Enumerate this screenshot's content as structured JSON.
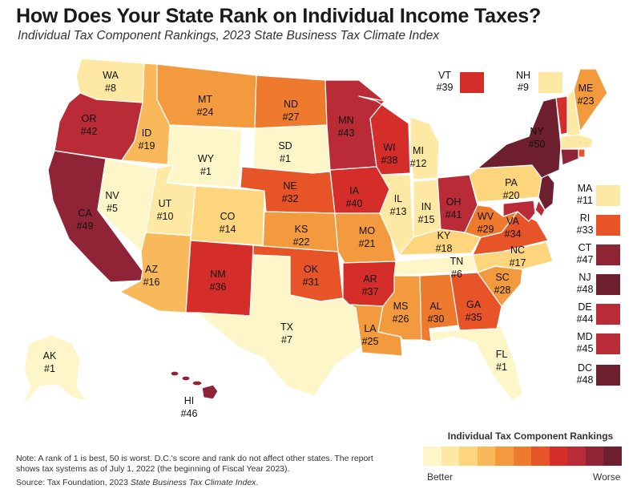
{
  "title": "How Does Your State Rank on Individual Income Taxes?",
  "subtitle": "Individual Tax Component Rankings, 2023 State Business Tax Climate Index",
  "colors": {
    "scale": [
      "#fdf6c8",
      "#fde9a3",
      "#fcd57c",
      "#f9b95b",
      "#f39a3e",
      "#ee7a2e",
      "#e65428",
      "#d52e2a",
      "#b92c37",
      "#8e2436",
      "#6d1e2f"
    ]
  },
  "states": {
    "WA": {
      "abbr": "WA",
      "rank": "#8"
    },
    "OR": {
      "abbr": "OR",
      "rank": "#42"
    },
    "CA": {
      "abbr": "CA",
      "rank": "#49"
    },
    "ID": {
      "abbr": "ID",
      "rank": "#19"
    },
    "NV": {
      "abbr": "NV",
      "rank": "#5"
    },
    "MT": {
      "abbr": "MT",
      "rank": "#24"
    },
    "WY": {
      "abbr": "WY",
      "rank": "#1"
    },
    "UT": {
      "abbr": "UT",
      "rank": "#10"
    },
    "AZ": {
      "abbr": "AZ",
      "rank": "#16"
    },
    "CO": {
      "abbr": "CO",
      "rank": "#14"
    },
    "NM": {
      "abbr": "NM",
      "rank": "#36"
    },
    "ND": {
      "abbr": "ND",
      "rank": "#27"
    },
    "SD": {
      "abbr": "SD",
      "rank": "#1"
    },
    "NE": {
      "abbr": "NE",
      "rank": "#32"
    },
    "KS": {
      "abbr": "KS",
      "rank": "#22"
    },
    "OK": {
      "abbr": "OK",
      "rank": "#31"
    },
    "TX": {
      "abbr": "TX",
      "rank": "#7"
    },
    "MN": {
      "abbr": "MN",
      "rank": "#43"
    },
    "IA": {
      "abbr": "IA",
      "rank": "#40"
    },
    "MO": {
      "abbr": "MO",
      "rank": "#21"
    },
    "AR": {
      "abbr": "AR",
      "rank": "#37"
    },
    "LA": {
      "abbr": "LA",
      "rank": "#25"
    },
    "WI": {
      "abbr": "WI",
      "rank": "#38"
    },
    "IL": {
      "abbr": "IL",
      "rank": "#13"
    },
    "MI": {
      "abbr": "MI",
      "rank": "#12"
    },
    "IN": {
      "abbr": "IN",
      "rank": "#15"
    },
    "OH": {
      "abbr": "OH",
      "rank": "#41"
    },
    "KY": {
      "abbr": "KY",
      "rank": "#18"
    },
    "TN": {
      "abbr": "TN",
      "rank": "#6"
    },
    "MS": {
      "abbr": "MS",
      "rank": "#26"
    },
    "AL": {
      "abbr": "AL",
      "rank": "#30"
    },
    "GA": {
      "abbr": "GA",
      "rank": "#35"
    },
    "FL": {
      "abbr": "FL",
      "rank": "#1"
    },
    "SC": {
      "abbr": "SC",
      "rank": "#28"
    },
    "NC": {
      "abbr": "NC",
      "rank": "#17"
    },
    "VA": {
      "abbr": "VA",
      "rank": "#34"
    },
    "WV": {
      "abbr": "WV",
      "rank": "#29"
    },
    "PA": {
      "abbr": "PA",
      "rank": "#20"
    },
    "NY": {
      "abbr": "NY",
      "rank": "#50"
    },
    "ME": {
      "abbr": "ME",
      "rank": "#23"
    },
    "AK": {
      "abbr": "AK",
      "rank": "#1"
    },
    "HI": {
      "abbr": "HI",
      "rank": "#46"
    },
    "VT": {
      "abbr": "VT",
      "rank": "#39"
    },
    "NH": {
      "abbr": "NH",
      "rank": "#9"
    },
    "MA": {
      "abbr": "MA",
      "rank": "#11"
    },
    "RI": {
      "abbr": "RI",
      "rank": "#33"
    },
    "CT": {
      "abbr": "CT",
      "rank": "#47"
    },
    "NJ": {
      "abbr": "NJ",
      "rank": "#48"
    },
    "DE": {
      "abbr": "DE",
      "rank": "#44"
    },
    "MD": {
      "abbr": "MD",
      "rank": "#45"
    },
    "DC": {
      "abbr": "DC",
      "rank": "#48"
    }
  },
  "legend": {
    "title": "Individual Tax Component Rankings",
    "better": "Better",
    "worse": "Worse"
  },
  "note": "Note: A rank of 1 is best, 50 is worst. D.C.'s score and rank do not affect other states. The report shows tax systems as of July 1, 2022 (the beginning of Fiscal Year 2023).",
  "source_prefix": "Source: Tax Foundation, 2023 ",
  "source_italic": "State Business Tax Climate Index",
  "source_suffix": "."
}
